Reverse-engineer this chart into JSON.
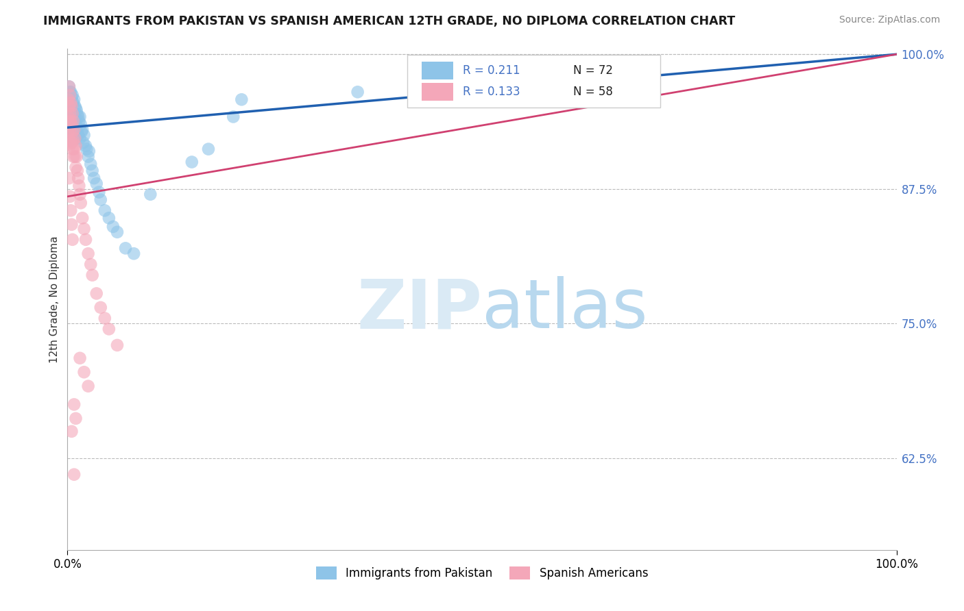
{
  "title": "IMMIGRANTS FROM PAKISTAN VS SPANISH AMERICAN 12TH GRADE, NO DIPLOMA CORRELATION CHART",
  "source": "Source: ZipAtlas.com",
  "ylabel": "12th Grade, No Diploma",
  "xlim": [
    0.0,
    1.0
  ],
  "ylim": [
    0.54,
    1.005
  ],
  "yticks": [
    0.625,
    0.75,
    0.875,
    1.0
  ],
  "ytick_labels": [
    "62.5%",
    "75.0%",
    "87.5%",
    "100.0%"
  ],
  "legend_r1": "R = 0.211",
  "legend_n1": "N = 72",
  "legend_r2": "R = 0.133",
  "legend_n2": "N = 58",
  "color_blue": "#8ec4e8",
  "color_pink": "#f4a7b9",
  "trendline_blue": "#2060b0",
  "trendline_pink": "#d04070",
  "background_color": "#ffffff",
  "blue_trend_start": 0.932,
  "blue_trend_end": 1.0,
  "pink_trend_start": 0.868,
  "pink_trend_end": 1.0,
  "blue_x": [
    0.001,
    0.001,
    0.001,
    0.002,
    0.002,
    0.002,
    0.002,
    0.003,
    0.003,
    0.003,
    0.003,
    0.003,
    0.004,
    0.004,
    0.004,
    0.004,
    0.005,
    0.005,
    0.005,
    0.005,
    0.006,
    0.006,
    0.006,
    0.007,
    0.007,
    0.007,
    0.008,
    0.008,
    0.008,
    0.009,
    0.009,
    0.009,
    0.01,
    0.01,
    0.01,
    0.011,
    0.011,
    0.012,
    0.012,
    0.013,
    0.013,
    0.014,
    0.015,
    0.015,
    0.016,
    0.017,
    0.018,
    0.019,
    0.02,
    0.022,
    0.023,
    0.025,
    0.026,
    0.028,
    0.03,
    0.032,
    0.035,
    0.038,
    0.04,
    0.045,
    0.05,
    0.055,
    0.06,
    0.07,
    0.08,
    0.1,
    0.15,
    0.17,
    0.2,
    0.21,
    0.35,
    0.44
  ],
  "blue_y": [
    0.96,
    0.945,
    0.935,
    0.97,
    0.955,
    0.94,
    0.93,
    0.965,
    0.95,
    0.94,
    0.93,
    0.92,
    0.965,
    0.952,
    0.942,
    0.928,
    0.96,
    0.948,
    0.935,
    0.922,
    0.962,
    0.945,
    0.93,
    0.955,
    0.94,
    0.925,
    0.958,
    0.942,
    0.928,
    0.952,
    0.938,
    0.924,
    0.95,
    0.936,
    0.922,
    0.948,
    0.93,
    0.944,
    0.928,
    0.942,
    0.925,
    0.938,
    0.942,
    0.922,
    0.935,
    0.928,
    0.93,
    0.918,
    0.925,
    0.915,
    0.912,
    0.905,
    0.91,
    0.898,
    0.892,
    0.885,
    0.88,
    0.872,
    0.865,
    0.855,
    0.848,
    0.84,
    0.835,
    0.82,
    0.815,
    0.87,
    0.9,
    0.912,
    0.942,
    0.958,
    0.965,
    0.978
  ],
  "pink_x": [
    0.001,
    0.001,
    0.001,
    0.002,
    0.002,
    0.002,
    0.002,
    0.003,
    0.003,
    0.003,
    0.003,
    0.004,
    0.004,
    0.004,
    0.005,
    0.005,
    0.005,
    0.006,
    0.006,
    0.006,
    0.007,
    0.007,
    0.007,
    0.008,
    0.008,
    0.009,
    0.009,
    0.01,
    0.01,
    0.011,
    0.012,
    0.013,
    0.014,
    0.015,
    0.016,
    0.018,
    0.02,
    0.022,
    0.025,
    0.028,
    0.03,
    0.035,
    0.04,
    0.045,
    0.05,
    0.06,
    0.002,
    0.003,
    0.004,
    0.005,
    0.006,
    0.015,
    0.02,
    0.025,
    0.008,
    0.01,
    0.005,
    0.008
  ],
  "pink_y": [
    0.958,
    0.942,
    0.928,
    0.97,
    0.952,
    0.938,
    0.92,
    0.962,
    0.945,
    0.93,
    0.916,
    0.955,
    0.938,
    0.92,
    0.952,
    0.935,
    0.918,
    0.945,
    0.928,
    0.912,
    0.938,
    0.92,
    0.905,
    0.93,
    0.912,
    0.922,
    0.905,
    0.915,
    0.895,
    0.905,
    0.892,
    0.885,
    0.878,
    0.87,
    0.862,
    0.848,
    0.838,
    0.828,
    0.815,
    0.805,
    0.795,
    0.778,
    0.765,
    0.755,
    0.745,
    0.73,
    0.885,
    0.868,
    0.855,
    0.842,
    0.828,
    0.718,
    0.705,
    0.692,
    0.675,
    0.662,
    0.65,
    0.61
  ]
}
